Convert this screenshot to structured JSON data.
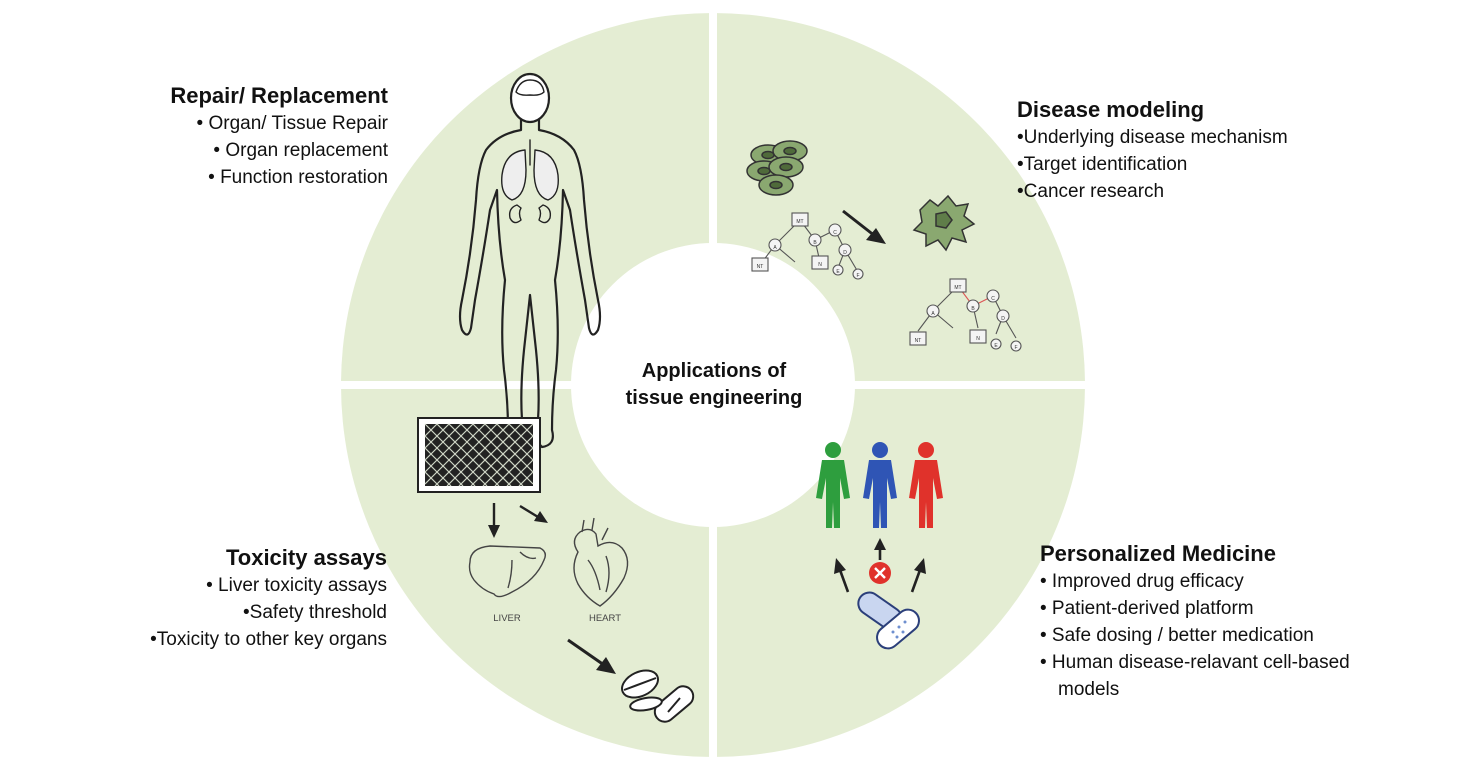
{
  "center_title": [
    "Applications of",
    "tissue engineering"
  ],
  "colors": {
    "quadrant_fill": "#e4edd3",
    "divider": "#ffffff",
    "center": "#ffffff",
    "line": "#222222",
    "cell_green": "#8aa870",
    "person_green": "#2e9e3e",
    "person_blue": "#2f55b5",
    "person_red": "#e0322b",
    "cross_red": "#e0322b",
    "pill_blue": "#6e8fcf"
  },
  "repair": {
    "heading": "Repair/ Replacement",
    "items": [
      "• Organ/ Tissue Repair",
      "• Organ replacement",
      "• Function restoration"
    ]
  },
  "disease": {
    "heading": "Disease modeling",
    "items": [
      "•Underlying disease mechanism",
      "•Target identification",
      "•Cancer research"
    ]
  },
  "toxicity": {
    "heading": "Toxicity assays",
    "items": [
      "• Liver toxicity assays",
      "•Safety threshold",
      "•Toxicity to other key organs"
    ]
  },
  "personalized": {
    "heading": "Personalized Medicine",
    "items": [
      "• Improved drug efficacy",
      "• Patient-derived platform",
      "• Safe dosing / better medication",
      "• Human disease-relavant cell-based",
      "models"
    ]
  },
  "organ_labels": {
    "liver": "LIVER",
    "heart": "HEART"
  },
  "network_labels": [
    "MT",
    "A",
    "B",
    "C",
    "D",
    "E",
    "F",
    "NT",
    "N",
    "M2"
  ],
  "icons": [
    "human-body-icon",
    "cell-cluster-icon",
    "network-graph-icon",
    "arrow-icon",
    "well-plate-icon",
    "liver-icon",
    "heart-icon",
    "pills-icon",
    "person-icon",
    "cross-icon",
    "capsule-icon"
  ]
}
